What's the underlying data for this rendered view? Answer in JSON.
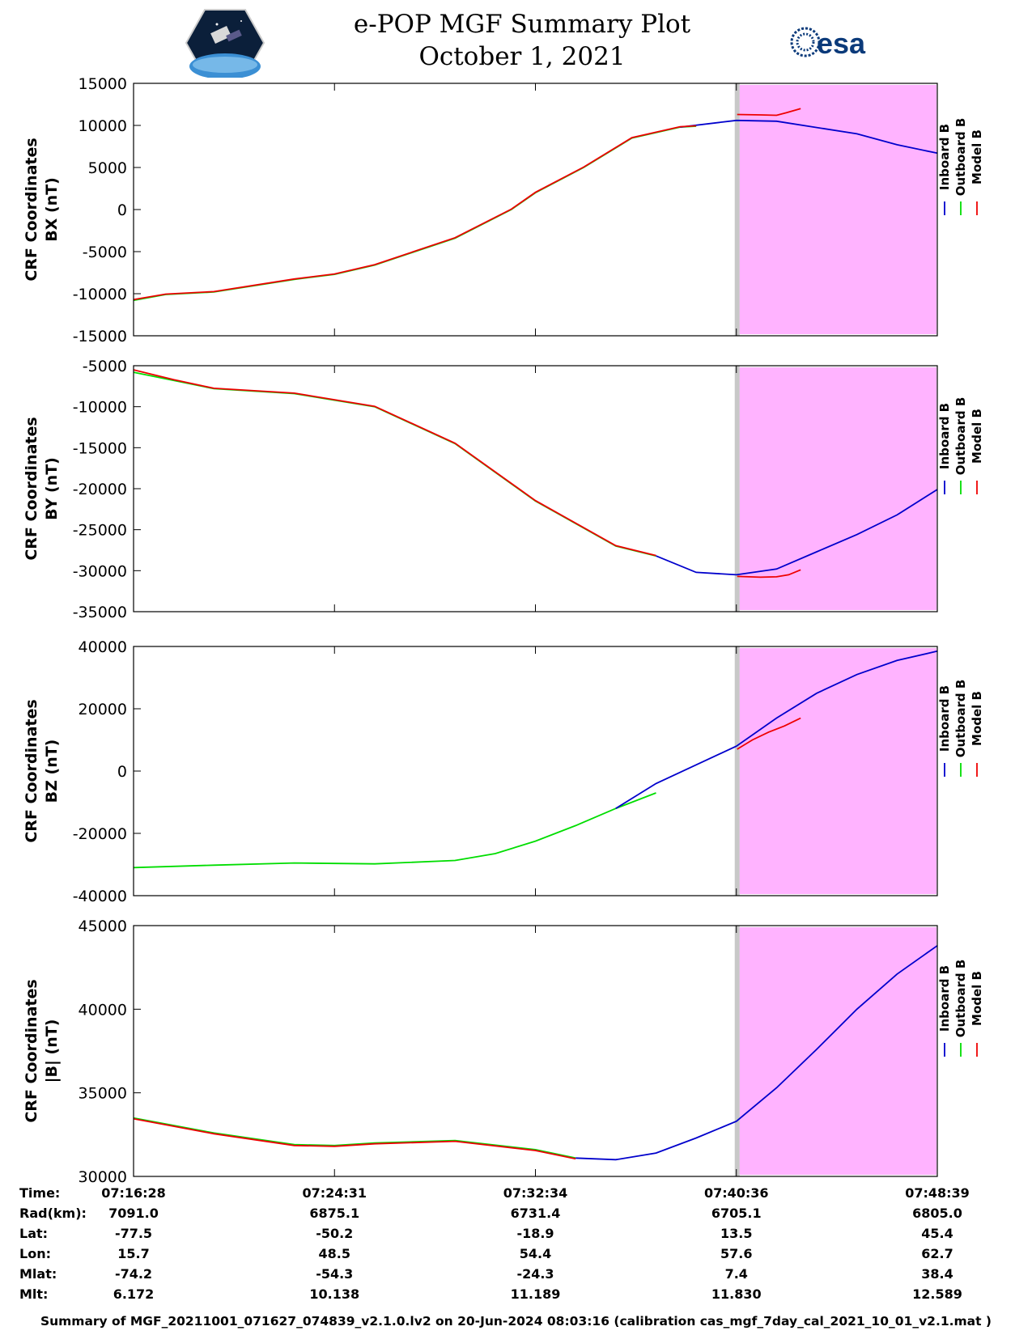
{
  "header": {
    "title": "e-POP MGF Summary Plot",
    "date": "October 1, 2021",
    "esa_logo_text": "esa"
  },
  "colors": {
    "inboard": "#0000cc",
    "outboard": "#00dd00",
    "model": "#ee0000",
    "shade": "#ffb3ff",
    "gap": "#c8c8c8"
  },
  "legend": [
    "Inboard B",
    "Outboard B",
    "Model B"
  ],
  "chart_data": [
    {
      "type": "line",
      "ylabel": [
        "CRF Coordinates",
        "BX (nT)"
      ],
      "ylim": [
        -15000,
        15000
      ],
      "yticks": [
        15000,
        10000,
        5000,
        0,
        -5000,
        -10000,
        -15000
      ],
      "series": [
        {
          "name": "Outboard B",
          "x": [
            0,
            0.04,
            0.1,
            0.2,
            0.25,
            0.3,
            0.4,
            0.47,
            0.5,
            0.56,
            0.62,
            0.68,
            0.7
          ],
          "y": [
            -10800,
            -10100,
            -9800,
            -8300,
            -7700,
            -6600,
            -3400,
            0,
            2000,
            5000,
            8500,
            9800,
            9900
          ]
        },
        {
          "name": "Inboard B",
          "x": [
            0.68,
            0.75,
            0.8,
            0.9,
            0.95,
            1.0
          ],
          "y": [
            9800,
            10600,
            10500,
            9000,
            7700,
            6700
          ]
        },
        {
          "name": "Model B",
          "x": [
            0,
            0.04,
            0.1,
            0.2,
            0.25,
            0.3,
            0.4,
            0.47,
            0.5,
            0.56,
            0.62,
            0.68,
            0.7
          ],
          "y": [
            -10700,
            -10050,
            -9750,
            -8250,
            -7650,
            -6550,
            -3350,
            50,
            2050,
            5050,
            8550,
            9850,
            9950
          ]
        },
        {
          "name": "Model B",
          "x": [
            0.751,
            0.78,
            0.8,
            0.812,
            0.83
          ],
          "y": [
            11300,
            11250,
            11200,
            11500,
            12000
          ]
        }
      ]
    },
    {
      "type": "line",
      "ylabel": [
        "CRF Coordinates",
        "BY (nT)"
      ],
      "ylim": [
        -35000,
        -5000
      ],
      "yticks": [
        -5000,
        -10000,
        -15000,
        -20000,
        -25000,
        -30000,
        -35000
      ],
      "series": [
        {
          "name": "Outboard B",
          "x": [
            0,
            0.1,
            0.2,
            0.3,
            0.4,
            0.5,
            0.6,
            0.65
          ],
          "y": [
            -5800,
            -7800,
            -8400,
            -10000,
            -14500,
            -21500,
            -27000,
            -28200
          ]
        },
        {
          "name": "Inboard B",
          "x": [
            0.65,
            0.7,
            0.75,
            0.8,
            0.85,
            0.9,
            0.95,
            1.0
          ],
          "y": [
            -28200,
            -30200,
            -30500,
            -29800,
            -27700,
            -25600,
            -23200,
            -20100
          ]
        },
        {
          "name": "Model B",
          "x": [
            0,
            0.05,
            0.1,
            0.2,
            0.3,
            0.4,
            0.5,
            0.6,
            0.65
          ],
          "y": [
            -5500,
            -6700,
            -7750,
            -8350,
            -9950,
            -14450,
            -21450,
            -26950,
            -28150
          ]
        },
        {
          "name": "Model B",
          "x": [
            0.751,
            0.78,
            0.8,
            0.815,
            0.83
          ],
          "y": [
            -30700,
            -30800,
            -30750,
            -30500,
            -29900
          ]
        }
      ]
    },
    {
      "type": "line",
      "ylabel": [
        "CRF Coordinates",
        "BZ (nT)"
      ],
      "ylim": [
        -40000,
        40000
      ],
      "yticks": [
        40000,
        20000,
        0,
        -20000,
        -40000
      ],
      "series": [
        {
          "name": "Outboard B",
          "x": [
            0,
            0.1,
            0.2,
            0.3,
            0.4,
            0.45,
            0.5,
            0.55,
            0.6,
            0.65
          ],
          "y": [
            -31000,
            -30200,
            -29500,
            -29800,
            -28700,
            -26500,
            -22500,
            -17500,
            -12000,
            -7000
          ]
        },
        {
          "name": "Inboard B",
          "x": [
            0.6,
            0.65,
            0.7,
            0.75,
            0.8,
            0.85,
            0.9,
            0.95,
            1.0
          ],
          "y": [
            -12000,
            -4000,
            2000,
            8000,
            17000,
            25000,
            31000,
            35500,
            38500
          ]
        },
        {
          "name": "Model B",
          "x": [
            0.751,
            0.77,
            0.79,
            0.81,
            0.83
          ],
          "y": [
            7000,
            10000,
            12500,
            14500,
            17000
          ]
        }
      ]
    },
    {
      "type": "line",
      "ylabel": [
        "CRF Coordinates",
        "|B| (nT)"
      ],
      "ylim": [
        30000,
        45000
      ],
      "yticks": [
        45000,
        40000,
        35000,
        30000
      ],
      "series": [
        {
          "name": "Outboard B",
          "x": [
            0,
            0.1,
            0.2,
            0.25,
            0.3,
            0.4,
            0.5,
            0.55
          ],
          "y": [
            33500,
            32600,
            31900,
            31850,
            32000,
            32150,
            31600,
            31100
          ]
        },
        {
          "name": "Inboard B",
          "x": [
            0.55,
            0.6,
            0.65,
            0.7,
            0.75,
            0.8,
            0.85,
            0.9,
            0.95,
            1.0
          ],
          "y": [
            31100,
            31000,
            31400,
            32300,
            33300,
            35300,
            37600,
            40000,
            42100,
            43800
          ]
        },
        {
          "name": "Model B",
          "x": [
            0,
            0.1,
            0.2,
            0.25,
            0.3,
            0.4,
            0.5,
            0.55
          ],
          "y": [
            33450,
            32550,
            31850,
            31800,
            31950,
            32100,
            31550,
            31050
          ]
        }
      ]
    }
  ],
  "ephemeris": {
    "rows": [
      {
        "label": "Time:",
        "values": [
          "07:16:28",
          "07:24:31",
          "07:32:34",
          "07:40:36",
          "07:48:39"
        ]
      },
      {
        "label": "Rad(km):",
        "values": [
          "7091.0",
          "6875.1",
          "6731.4",
          "6705.1",
          "6805.0"
        ]
      },
      {
        "label": "Lat:",
        "values": [
          "-77.5",
          "-50.2",
          "-18.9",
          "13.5",
          "45.4"
        ]
      },
      {
        "label": "Lon:",
        "values": [
          "15.7",
          "48.5",
          "54.4",
          "57.6",
          "62.7"
        ]
      },
      {
        "label": "Mlat:",
        "values": [
          "-74.2",
          "-54.3",
          "-24.3",
          "7.4",
          "38.4"
        ]
      },
      {
        "label": "Mlt:",
        "values": [
          "6.172",
          "10.138",
          "11.189",
          "11.830",
          "12.589"
        ]
      }
    ]
  },
  "footer": "Summary of MGF_20211001_071627_074839_v2.1.0.lv2 on 20-Jun-2024 08:03:16 (calibration cas_mgf_7day_cal_2021_10_01_v2.1.mat )"
}
